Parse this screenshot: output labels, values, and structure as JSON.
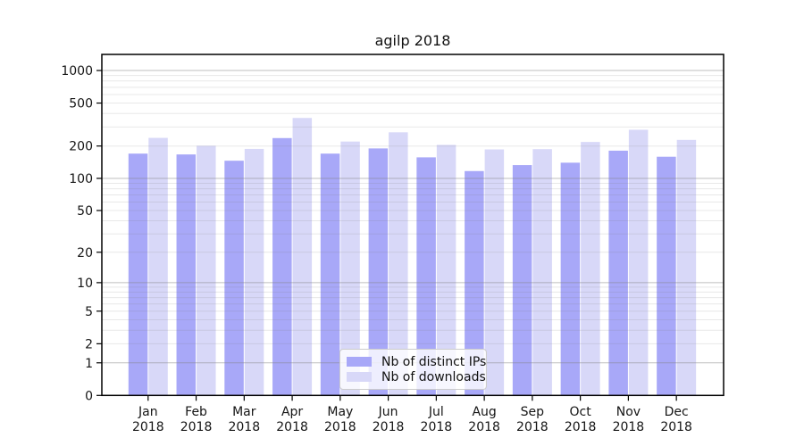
{
  "chart_data": {
    "type": "bar",
    "title": "agilp 2018",
    "categories": [
      "Jan",
      "Feb",
      "Mar",
      "Apr",
      "May",
      "Jun",
      "Jul",
      "Aug",
      "Sep",
      "Oct",
      "Nov",
      "Dec"
    ],
    "x_year": "2018",
    "series": [
      {
        "name": "Nb of distinct IPs",
        "color": "#a8a8f8",
        "values": [
          170,
          167,
          146,
          237,
          170,
          190,
          157,
          117,
          133,
          140,
          181,
          159
        ]
      },
      {
        "name": "Nb of downloads",
        "color": "#d8d8f8",
        "values": [
          238,
          201,
          188,
          364,
          220,
          268,
          205,
          186,
          187,
          218,
          283,
          228
        ]
      }
    ],
    "y_ticks": [
      1000,
      500,
      200,
      100,
      50,
      20,
      10,
      5,
      2,
      1,
      0
    ],
    "y_scale": "log1p",
    "ylim": [
      0,
      1410
    ],
    "xlabel": "",
    "ylabel": "",
    "grid": "both",
    "legend": {
      "position": "lower center"
    },
    "colors": {
      "frame": "#000000",
      "grid_major": "#808080",
      "grid_minor": "#808080",
      "tick_text": "#151515"
    }
  }
}
